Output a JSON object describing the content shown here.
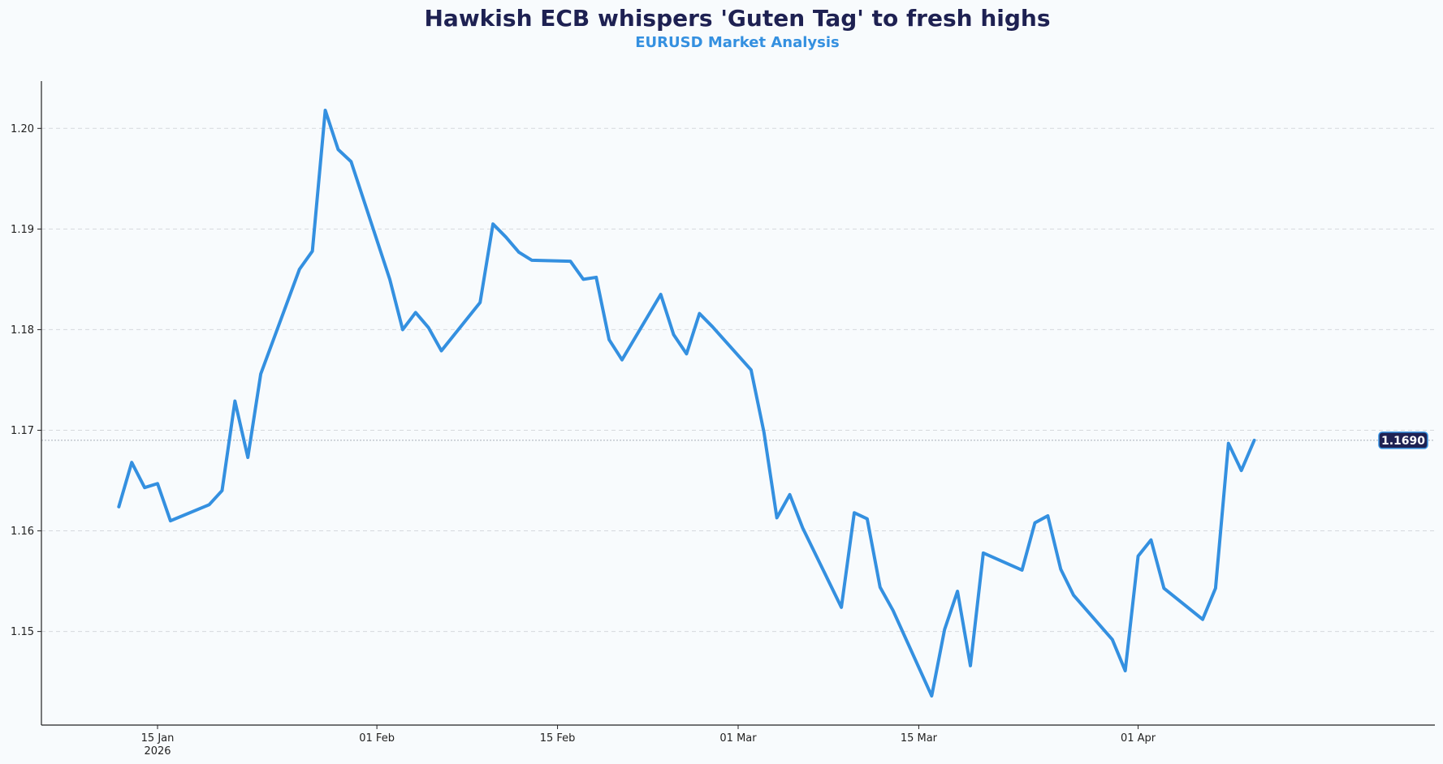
{
  "chart_data": {
    "type": "line",
    "title": "Hawkish ECB whispers 'Guten Tag' to fresh highs",
    "subtitle": "EURUSD Market Analysis",
    "xlabel": "",
    "ylabel": "",
    "ylim": [
      1.1407,
      1.2047
    ],
    "xlim": [
      "2026-01-06",
      "2026-04-24"
    ],
    "grid": "horizontal-dashed",
    "y_ticks": [
      "1.15",
      "1.16",
      "1.17",
      "1.18",
      "1.19",
      "1.20"
    ],
    "x_ticks": [
      {
        "date": "2026-01-15",
        "label": "15 Jan",
        "sublabel": "2026"
      },
      {
        "date": "2026-02-01",
        "label": "01 Feb",
        "sublabel": ""
      },
      {
        "date": "2026-02-15",
        "label": "15 Feb",
        "sublabel": ""
      },
      {
        "date": "2026-03-01",
        "label": "01 Mar",
        "sublabel": ""
      },
      {
        "date": "2026-03-15",
        "label": "15 Mar",
        "sublabel": ""
      },
      {
        "date": "2026-04-01",
        "label": "01 Apr",
        "sublabel": ""
      }
    ],
    "series": [
      {
        "color": "#3490e0",
        "points": [
          [
            "2026-01-12",
            1.1624
          ],
          [
            "2026-01-13",
            1.1668
          ],
          [
            "2026-01-14",
            1.1643
          ],
          [
            "2026-01-15",
            1.1647
          ],
          [
            "2026-01-16",
            1.161
          ],
          [
            "2026-01-19",
            1.1626
          ],
          [
            "2026-01-20",
            1.164
          ],
          [
            "2026-01-21",
            1.1729
          ],
          [
            "2026-01-22",
            1.1673
          ],
          [
            "2026-01-23",
            1.1756
          ],
          [
            "2026-01-26",
            1.186
          ],
          [
            "2026-01-27",
            1.1878
          ],
          [
            "2026-01-28",
            1.2018
          ],
          [
            "2026-01-29",
            1.1979
          ],
          [
            "2026-01-30",
            1.1967
          ],
          [
            "2026-02-02",
            1.185
          ],
          [
            "2026-02-03",
            1.18
          ],
          [
            "2026-02-04",
            1.1817
          ],
          [
            "2026-02-05",
            1.1802
          ],
          [
            "2026-02-06",
            1.1779
          ],
          [
            "2026-02-09",
            1.1827
          ],
          [
            "2026-02-10",
            1.1905
          ],
          [
            "2026-02-11",
            1.1892
          ],
          [
            "2026-02-12",
            1.1877
          ],
          [
            "2026-02-13",
            1.1869
          ],
          [
            "2026-02-16",
            1.1868
          ],
          [
            "2026-02-17",
            1.185
          ],
          [
            "2026-02-18",
            1.1852
          ],
          [
            "2026-02-19",
            1.179
          ],
          [
            "2026-02-20",
            1.177
          ],
          [
            "2026-02-23",
            1.1835
          ],
          [
            "2026-02-24",
            1.1795
          ],
          [
            "2026-02-25",
            1.1776
          ],
          [
            "2026-02-26",
            1.1816
          ],
          [
            "2026-02-27",
            1.1803
          ],
          [
            "2026-03-02",
            1.176
          ],
          [
            "2026-03-03",
            1.1698
          ],
          [
            "2026-03-04",
            1.1613
          ],
          [
            "2026-03-05",
            1.1636
          ],
          [
            "2026-03-06",
            1.1603
          ],
          [
            "2026-03-09",
            1.1524
          ],
          [
            "2026-03-10",
            1.1618
          ],
          [
            "2026-03-11",
            1.1612
          ],
          [
            "2026-03-12",
            1.1544
          ],
          [
            "2026-03-13",
            1.1521
          ],
          [
            "2026-03-16",
            1.1436
          ],
          [
            "2026-03-17",
            1.1502
          ],
          [
            "2026-03-18",
            1.154
          ],
          [
            "2026-03-19",
            1.1466
          ],
          [
            "2026-03-20",
            1.1578
          ],
          [
            "2026-03-23",
            1.1561
          ],
          [
            "2026-03-24",
            1.1608
          ],
          [
            "2026-03-25",
            1.1615
          ],
          [
            "2026-03-26",
            1.1562
          ],
          [
            "2026-03-27",
            1.1536
          ],
          [
            "2026-03-30",
            1.1492
          ],
          [
            "2026-03-31",
            1.1461
          ],
          [
            "2026-04-01",
            1.1575
          ],
          [
            "2026-04-02",
            1.1591
          ],
          [
            "2026-04-03",
            1.1543
          ],
          [
            "2026-04-06",
            1.1512
          ],
          [
            "2026-04-07",
            1.1543
          ],
          [
            "2026-04-08",
            1.1687
          ],
          [
            "2026-04-09",
            1.166
          ],
          [
            "2026-04-10",
            1.169
          ]
        ]
      }
    ],
    "last_value": 1.169,
    "last_value_label": "1.1690"
  }
}
